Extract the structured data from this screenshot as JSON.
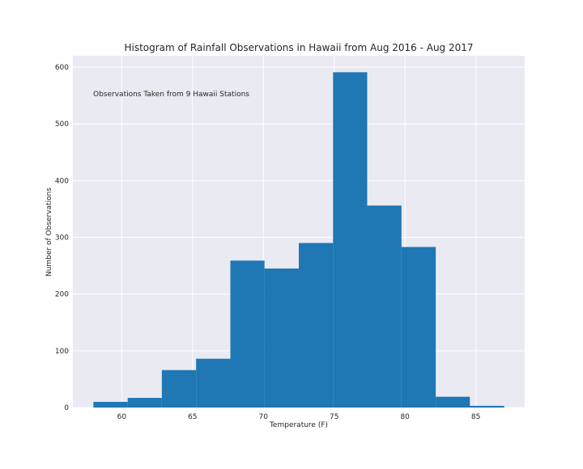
{
  "chart_data": {
    "type": "bar",
    "title": "Histogram of Rainfall Observations in Hawaii from Aug 2016 - Aug 2017",
    "xlabel": "Temperature (F)",
    "ylabel": "Number of Observations",
    "annotation": "Observations Taken from 9 Hawaii Stations",
    "xlim": [
      56.55,
      88.45
    ],
    "ylim": [
      0,
      620
    ],
    "xticks": [
      60,
      65,
      70,
      75,
      80,
      85
    ],
    "yticks": [
      0,
      100,
      200,
      300,
      400,
      500,
      600
    ],
    "bin_edges": [
      58,
      60.42,
      62.83,
      65.25,
      67.67,
      70.08,
      72.5,
      74.92,
      77.33,
      79.75,
      82.17,
      84.58,
      87
    ],
    "values": [
      10,
      17,
      66,
      86,
      259,
      245,
      290,
      591,
      356,
      283,
      19,
      3
    ],
    "bar_color": "#1f77b4",
    "background_color": "#eaeaf2",
    "grid": true
  }
}
